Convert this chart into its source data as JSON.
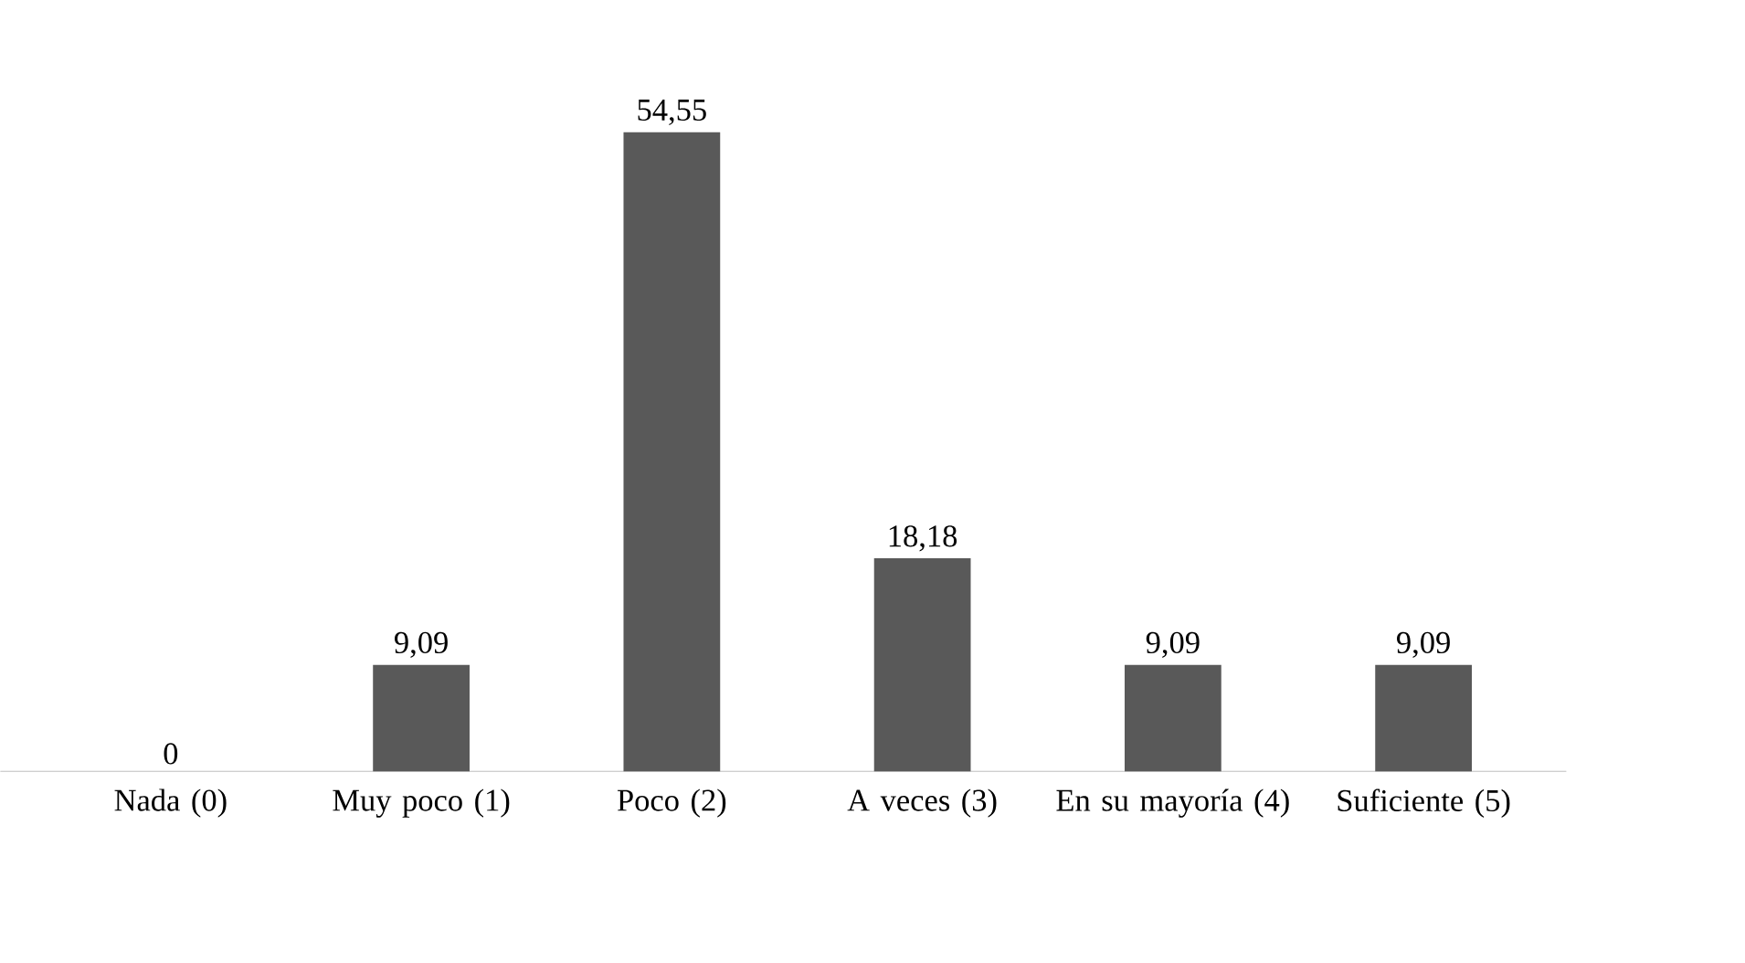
{
  "chart_data": {
    "type": "bar",
    "categories": [
      "Nada (0)",
      "Muy poco (1)",
      "Poco (2)",
      "A veces (3)",
      "En su mayoría (4)",
      "Suficiente (5)"
    ],
    "values": [
      0,
      9.09,
      54.55,
      18.18,
      9.09,
      9.09
    ],
    "value_labels": [
      "0",
      "9,09",
      "54,55",
      "18,18",
      "9,09",
      "9,09"
    ],
    "color": "#595959"
  }
}
